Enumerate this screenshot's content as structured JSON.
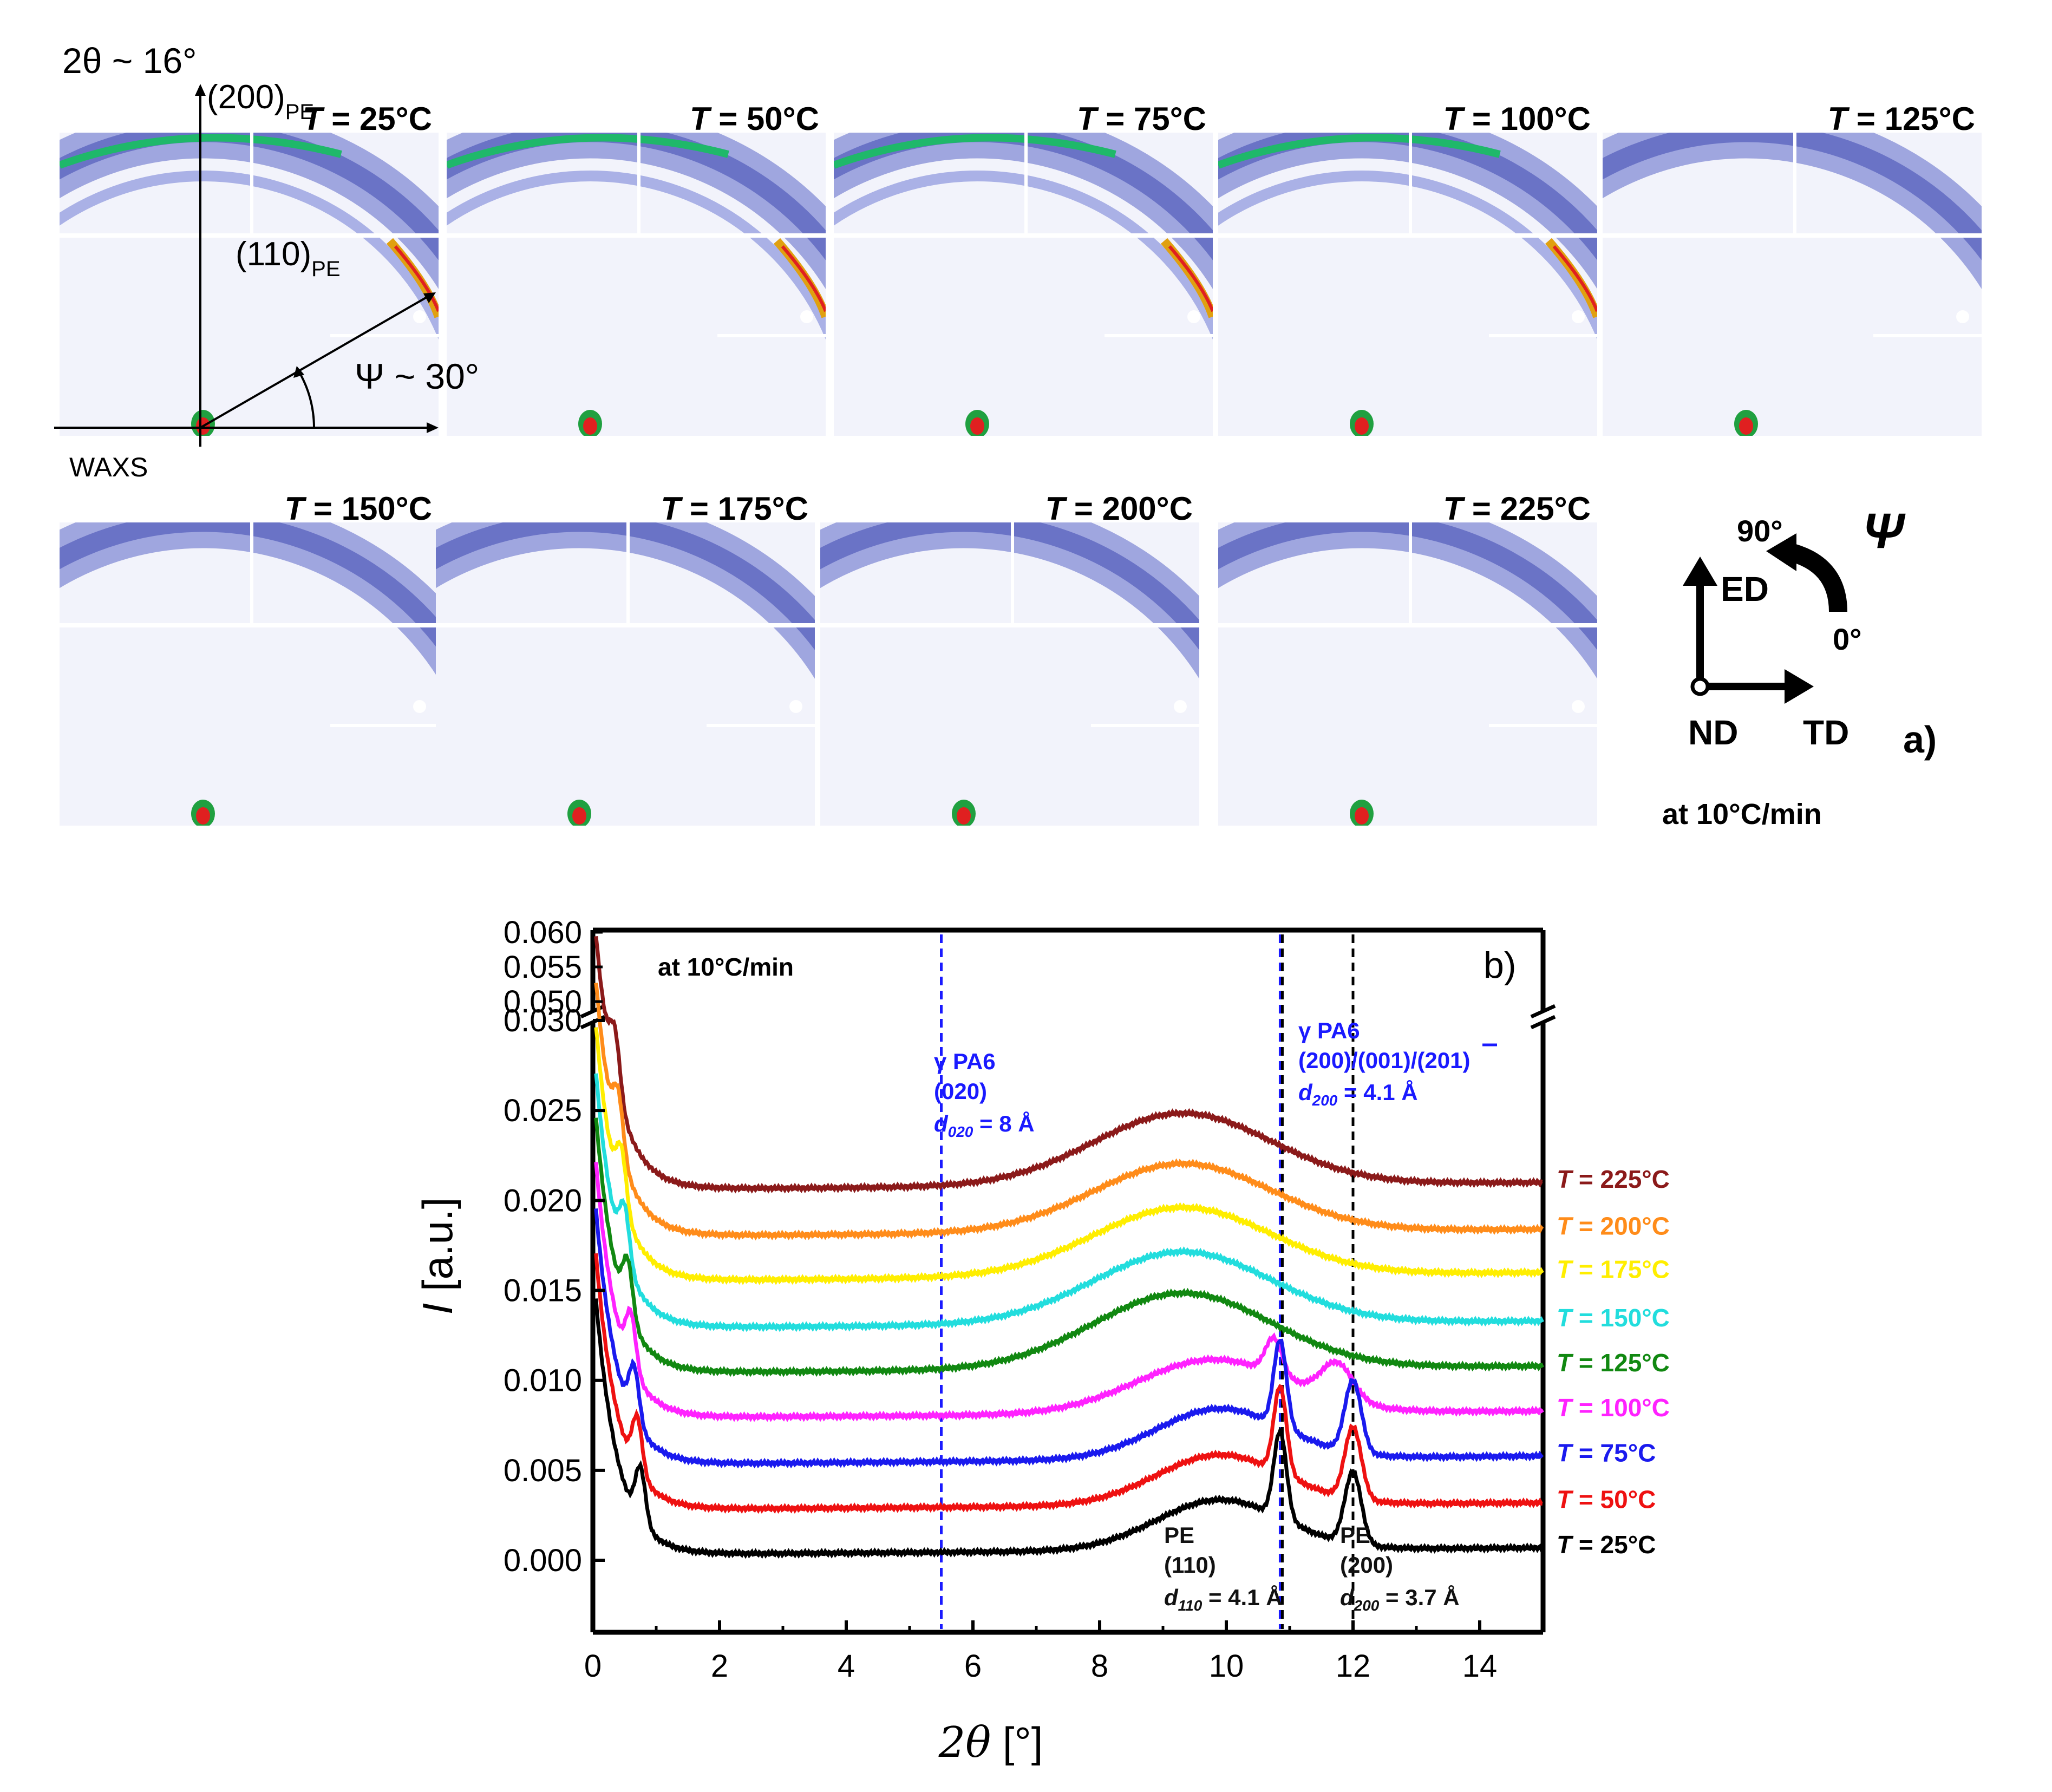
{
  "panel_a": {
    "label": "a)",
    "rate_text": "at 10°C/min",
    "waxs_label": "WAXS",
    "two_theta_prefix": "2θ ~ ",
    "two_theta_value": "16°",
    "reflection_200": "(200)",
    "reflection_110": "(110)",
    "pe_subscript": "PE",
    "psi_prefix": "Ψ ~ ",
    "psi_value": "30°",
    "temp_var": "T",
    "temperatures": [
      "= 25°C",
      "= 50°C",
      "= 75°C",
      "= 100°C",
      "= 125°C",
      "= 150°C",
      "= 175°C",
      "= 200°C",
      "= 225°C"
    ],
    "orientation": {
      "ed": "ED",
      "td": "TD",
      "nd": "ND",
      "angle_90": "90°",
      "angle_0": "0°",
      "psi_symbol": "Ψ"
    }
  },
  "chart_data": {
    "type": "line",
    "panel_label": "b)",
    "annotation_rate": "at 10°C/min",
    "xlabel_var": "2θ",
    "xlabel_unit": " [°]",
    "ylabel_var": "I",
    "ylabel_unit": " [a.u.]",
    "xlim": [
      0,
      15
    ],
    "ylim_main": [
      -0.004,
      0.03
    ],
    "ylim_upper": [
      0.05,
      0.06
    ],
    "x_ticks": [
      0,
      2,
      4,
      6,
      8,
      10,
      12,
      14
    ],
    "x_tick_labels": [
      "0",
      "2",
      "4",
      "6",
      "8",
      "10",
      "12",
      "14"
    ],
    "y_ticks": [
      0.0,
      0.005,
      0.01,
      0.015,
      0.02,
      0.025,
      0.03
    ],
    "y_tick_labels": [
      "0.000",
      "0.005",
      "0.010",
      "0.015",
      "0.020",
      "0.025",
      "0.030"
    ],
    "y_upper_ticks": [
      0.05,
      0.055,
      0.06
    ],
    "y_upper_tick_labels": [
      "0.050",
      "0.055",
      "0.060"
    ],
    "vlines": [
      {
        "x": 5.5,
        "color": "#1a1aff",
        "style": "dashed"
      },
      {
        "x": 10.85,
        "color": "#1a1aff",
        "style": "dashed"
      },
      {
        "x": 10.85,
        "color": "#000000",
        "style": "dashed"
      },
      {
        "x": 12.0,
        "color": "#000000",
        "style": "dashed"
      }
    ],
    "annotations": {
      "gamma020": {
        "l1": "γ PA6",
        "l2": "(020)",
        "d_var": "d",
        "d_sub": "020",
        "d_val": "= 8 Å",
        "color": "#1a1aff"
      },
      "gamma200": {
        "l1": "γ PA6",
        "l2": "(200)/(001)/(201)",
        "d_var": "d",
        "d_sub": "200",
        "d_val": "= 4.1 Å",
        "color": "#1a1aff"
      },
      "pe110": {
        "l1": "PE",
        "l2": "(110)",
        "d_var": "d",
        "d_sub": "110",
        "d_val": "= 4.1 Å",
        "color": "#111111"
      },
      "pe200": {
        "l1": "PE",
        "l2": "(200)",
        "d_var": "d",
        "d_sub": "200",
        "d_val": "= 3.7 Å",
        "color": "#111111"
      }
    },
    "series": [
      {
        "name": "= 225°C",
        "color": "#8b1a1a",
        "base": 0.0206,
        "feature": "amorph",
        "amp": 0.004,
        "end": 0.021
      },
      {
        "name": "= 200°C",
        "color": "#ff8c1a",
        "base": 0.018,
        "feature": "amorph",
        "amp": 0.0038,
        "end": 0.0184
      },
      {
        "name": "= 175°C",
        "color": "#ffee00",
        "base": 0.0155,
        "feature": "amorph",
        "amp": 0.0038,
        "end": 0.016
      },
      {
        "name": "= 150°C",
        "color": "#22dddd",
        "base": 0.0129,
        "feature": "amorph",
        "amp": 0.004,
        "end": 0.0133
      },
      {
        "name": "= 125°C",
        "color": "#118811",
        "base": 0.0104,
        "feature": "amorph",
        "amp": 0.0042,
        "end": 0.0108
      },
      {
        "name": "= 100°C",
        "color": "#ff22ff",
        "base": 0.0079,
        "feature": "melt",
        "amp": 0.0022,
        "end": 0.0083
      },
      {
        "name": "= 75°C",
        "color": "#1a1aee",
        "base": 0.0053,
        "feature": "cryst",
        "amp": 0.002,
        "end": 0.0058
      },
      {
        "name": "= 50°C",
        "color": "#ee1111",
        "base": 0.0028,
        "feature": "cryst",
        "amp": 0.0018,
        "end": 0.0032
      },
      {
        "name": "= 25°C",
        "color": "#000000",
        "base": 0.0003,
        "feature": "cryst",
        "amp": 0.0017,
        "end": 0.0007
      }
    ]
  }
}
